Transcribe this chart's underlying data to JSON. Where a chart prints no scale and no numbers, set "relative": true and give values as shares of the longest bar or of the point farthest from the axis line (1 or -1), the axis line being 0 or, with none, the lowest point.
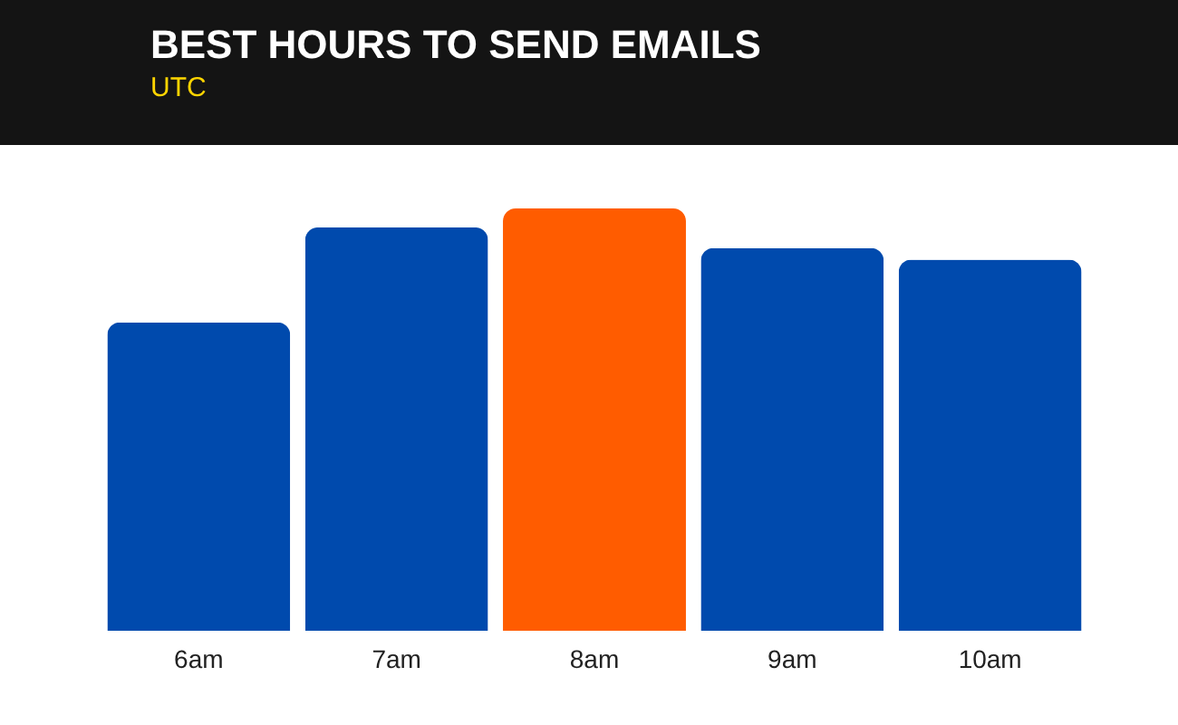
{
  "chart_data": {
    "type": "bar",
    "title": "BEST HOURS TO SEND EMAILS",
    "subtitle": "UTC",
    "categories": [
      "6am",
      "7am",
      "8am",
      "9am",
      "10am"
    ],
    "values": [
      0.73,
      0.955,
      1,
      0.906,
      0.879
    ],
    "colors": [
      "#004aad",
      "#004aad",
      "#ff5c00",
      "#004aad",
      "#004aad"
    ],
    "relative": true
  }
}
